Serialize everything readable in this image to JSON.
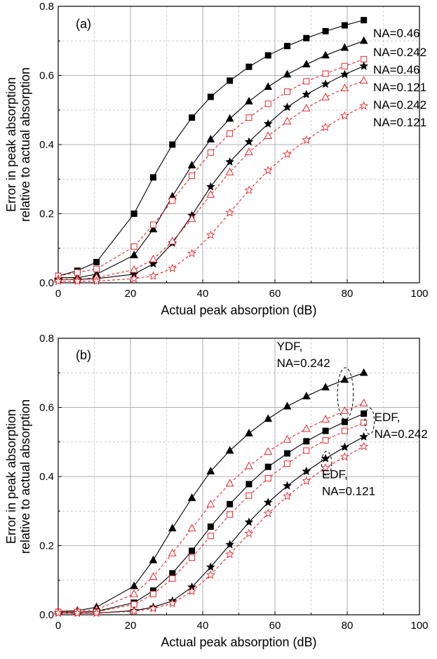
{
  "chart_data": [
    {
      "type": "line",
      "panel_label": "(a)",
      "xlabel": "Actual peak absorption (dB)",
      "ylabel_lines": [
        "Error in peak absorption",
        "relative to actual absorption"
      ],
      "xlim": [
        0,
        100
      ],
      "ylim": [
        0,
        0.8
      ],
      "xticks": [
        0,
        20,
        40,
        60,
        80,
        100
      ],
      "yticks": [
        0.0,
        0.2,
        0.4,
        0.6,
        0.8
      ],
      "ytick_labels": [
        "0.0",
        "0.2",
        "0.4",
        "0.6",
        "0.8"
      ],
      "grid": true,
      "x": [
        0,
        5.3,
        10.6,
        21,
        26.3,
        31.6,
        37,
        42.2,
        47.5,
        52.8,
        58.1,
        63.4,
        68.7,
        74,
        79.3,
        84.6
      ],
      "series": [
        {
          "name": "NA=0.46",
          "color": "#000000",
          "dash": false,
          "marker": "square",
          "filled": true,
          "values": [
            0.02,
            0.035,
            0.06,
            0.2,
            0.305,
            0.4,
            0.478,
            0.538,
            0.585,
            0.625,
            0.658,
            0.685,
            0.708,
            0.728,
            0.745,
            0.76
          ]
        },
        {
          "name": "NA=0.242",
          "color": "#000000",
          "dash": false,
          "marker": "triangle",
          "filled": true,
          "values": [
            0.015,
            0.015,
            0.025,
            0.08,
            0.155,
            0.25,
            0.34,
            0.415,
            0.475,
            0.525,
            0.567,
            0.603,
            0.632,
            0.658,
            0.68,
            0.7
          ]
        },
        {
          "name": "NA=0.46",
          "color": "#e8262b",
          "dash": true,
          "marker": "square",
          "filled": false,
          "values": [
            0.02,
            0.03,
            0.04,
            0.105,
            0.168,
            0.238,
            0.31,
            0.377,
            0.432,
            0.478,
            0.518,
            0.553,
            0.583,
            0.605,
            0.627,
            0.647
          ]
        },
        {
          "name": "NA=0.121",
          "color": "#000000",
          "dash": false,
          "marker": "star",
          "filled": true,
          "values": [
            0.01,
            0.01,
            0.012,
            0.025,
            0.055,
            0.115,
            0.195,
            0.278,
            0.35,
            0.408,
            0.46,
            0.508,
            0.545,
            0.575,
            0.603,
            0.627
          ]
        },
        {
          "name": "NA=0.242",
          "color": "#e8262b",
          "dash": true,
          "marker": "triangle",
          "filled": false,
          "values": [
            0.01,
            0.01,
            0.015,
            0.038,
            0.068,
            0.12,
            0.185,
            0.255,
            0.32,
            0.378,
            0.425,
            0.467,
            0.505,
            0.537,
            0.563,
            0.585
          ]
        },
        {
          "name": "NA=0.121",
          "color": "#e8262b",
          "dash": true,
          "marker": "star",
          "filled": false,
          "values": [
            0.005,
            0.005,
            0.005,
            0.012,
            0.02,
            0.042,
            0.085,
            0.138,
            0.203,
            0.268,
            0.325,
            0.372,
            0.413,
            0.45,
            0.483,
            0.512
          ]
        }
      ],
      "legend_labels": [
        {
          "text": "NA=0.46",
          "series_index": 0
        },
        {
          "text": "NA=0.242",
          "series_index": 1
        },
        {
          "text": "NA=0.46",
          "series_index": 2
        },
        {
          "text": "NA=0.121",
          "series_index": 3
        },
        {
          "text": "NA=0.242",
          "series_index": 4
        },
        {
          "text": "NA=0.121",
          "series_index": 5
        }
      ]
    },
    {
      "type": "line",
      "panel_label": "(b)",
      "xlabel": "Actual peak absorption (dB)",
      "ylabel_lines": [
        "Error in peak absorption",
        "relative to actual absorption"
      ],
      "xlim": [
        0,
        100
      ],
      "ylim": [
        0,
        0.8
      ],
      "xticks": [
        0,
        20,
        40,
        60,
        80,
        100
      ],
      "yticks": [
        0.0,
        0.2,
        0.4,
        0.6,
        0.8
      ],
      "ytick_labels": [
        "0.0",
        "0.2",
        "0.4",
        "0.6",
        "0.8"
      ],
      "grid": true,
      "x": [
        0,
        5.3,
        10.6,
        21,
        26.3,
        31.6,
        37,
        42.2,
        47.5,
        52.8,
        58.1,
        63.4,
        68.7,
        74,
        79.3,
        84.6
      ],
      "series": [
        {
          "color": "#000000",
          "dash": false,
          "marker": "triangle",
          "filled": true,
          "values": [
            0.01,
            0.012,
            0.022,
            0.083,
            0.158,
            0.25,
            0.338,
            0.415,
            0.475,
            0.525,
            0.567,
            0.603,
            0.632,
            0.658,
            0.68,
            0.7
          ]
        },
        {
          "color": "#e8262b",
          "dash": true,
          "marker": "triangle",
          "filled": false,
          "values": [
            0.01,
            0.01,
            0.015,
            0.06,
            0.11,
            0.178,
            0.25,
            0.32,
            0.38,
            0.43,
            0.472,
            0.507,
            0.538,
            0.565,
            0.59,
            0.612
          ]
        },
        {
          "color": "#000000",
          "dash": false,
          "marker": "square",
          "filled": true,
          "values": [
            0.008,
            0.008,
            0.01,
            0.035,
            0.07,
            0.12,
            0.185,
            0.255,
            0.32,
            0.378,
            0.428,
            0.467,
            0.502,
            0.532,
            0.558,
            0.582
          ]
        },
        {
          "color": "#e8262b",
          "dash": true,
          "marker": "square",
          "filled": false,
          "values": [
            0.008,
            0.008,
            0.008,
            0.03,
            0.06,
            0.105,
            0.165,
            0.228,
            0.29,
            0.345,
            0.395,
            0.437,
            0.475,
            0.505,
            0.532,
            0.556
          ]
        },
        {
          "color": "#000000",
          "dash": false,
          "marker": "star",
          "filled": true,
          "values": [
            0.005,
            0.005,
            0.005,
            0.012,
            0.022,
            0.04,
            0.08,
            0.138,
            0.203,
            0.268,
            0.325,
            0.373,
            0.415,
            0.452,
            0.485,
            0.515
          ]
        },
        {
          "color": "#e8262b",
          "dash": true,
          "marker": "star",
          "filled": false,
          "values": [
            0.005,
            0.005,
            0.005,
            0.01,
            0.018,
            0.033,
            0.068,
            0.115,
            0.175,
            0.235,
            0.293,
            0.343,
            0.387,
            0.425,
            0.457,
            0.487
          ]
        }
      ],
      "annotations": [
        {
          "lines": [
            "YDF,",
            "NA=0.242"
          ],
          "x": 60.5,
          "y": 0.765,
          "anchor": "start"
        },
        {
          "lines": [
            "EDF,",
            "NA=0.242"
          ],
          "x": 87.5,
          "y": 0.56,
          "anchor": "start"
        },
        {
          "lines": [
            "EDF,",
            "NA=0.121"
          ],
          "x": 73,
          "y": 0.395,
          "anchor": "start"
        }
      ],
      "ellipses": [
        {
          "cx": 79.5,
          "cy": 0.64,
          "rx": 2.2,
          "ry": 0.075
        },
        {
          "cx": 86.2,
          "cy": 0.56,
          "rx": 1.3,
          "ry": 0.038
        },
        {
          "cx": 74.3,
          "cy": 0.438,
          "rx": 1.4,
          "ry": 0.035
        }
      ]
    }
  ]
}
